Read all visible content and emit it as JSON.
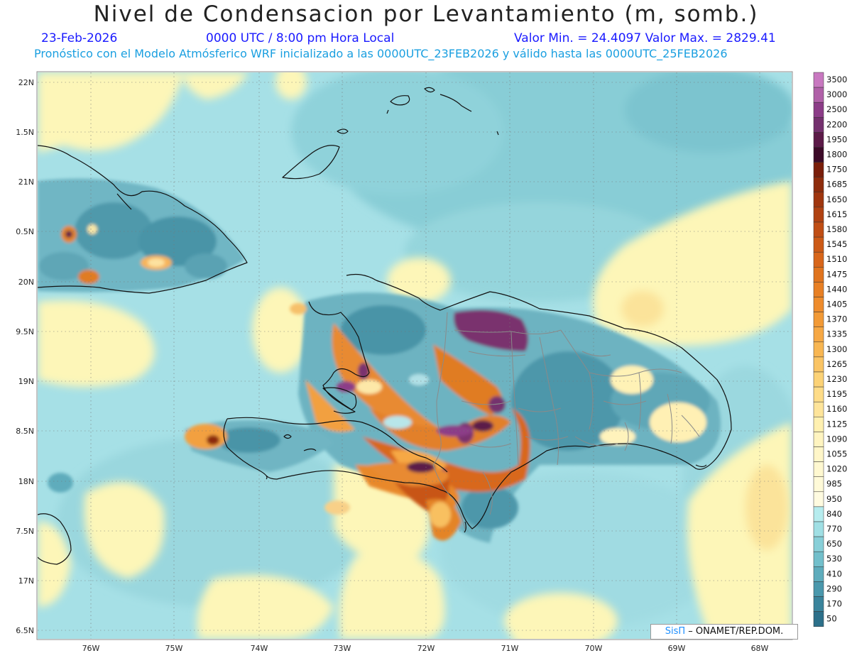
{
  "title": "Nivel de Condensacion por Levantamiento (m, somb.)",
  "header": {
    "date": "23-Feb-2026",
    "time": "0000 UTC / 8:00 pm Hora Local",
    "minmax": "Valor Min. = 24.4097   Valor Max. = 2829.41",
    "subtitle": "Pronóstico con el Modelo Atmósferico WRF inicializado a las 0000UTC_23FEB2026 y válido hasta las  0000UTC_25FEB2026"
  },
  "axes": {
    "lat_labels": [
      "22N",
      "1.5N",
      "21N",
      "0.5N",
      "20N",
      "9.5N",
      "19N",
      "8.5N",
      "18N",
      "7.5N",
      "17N",
      "6.5N"
    ],
    "lon_labels": [
      "76W",
      "75W",
      "74W",
      "73W",
      "72W",
      "71W",
      "70W",
      "69W",
      "68W"
    ]
  },
  "colorbar": {
    "levels": [
      "3500",
      "3000",
      "2500",
      "2200",
      "1950",
      "1800",
      "1750",
      "1685",
      "1650",
      "1615",
      "1580",
      "1545",
      "1510",
      "1475",
      "1440",
      "1405",
      "1370",
      "1335",
      "1300",
      "1265",
      "1230",
      "1195",
      "1160",
      "1125",
      "1090",
      "1055",
      "1020",
      "985",
      "950",
      "840",
      "770",
      "650",
      "530",
      "410",
      "290",
      "170",
      "50"
    ],
    "colors": [
      "#c878c0",
      "#b060a8",
      "#8c3c88",
      "#74306e",
      "#5c1a48",
      "#3c0a28",
      "#7a1e0a",
      "#8e2c0c",
      "#a0360e",
      "#b04212",
      "#c04e14",
      "#cc5a16",
      "#d8661a",
      "#e0741e",
      "#e88024",
      "#ee8c2c",
      "#f29a36",
      "#f6a844",
      "#f8b652",
      "#fac464",
      "#fcd276",
      "#fedc88",
      "#fee49a",
      "#fff0b0",
      "#fff4c0",
      "#fff6c8",
      "#fff8d0",
      "#fffad8",
      "#fffbe0",
      "#b6ecee",
      "#a0dfe4",
      "#88cfd8",
      "#72bfcb",
      "#5eacbc",
      "#4a98ac",
      "#3a849c",
      "#2c708a"
    ]
  },
  "credit": {
    "brand": "SisΠ",
    "text": " – ONAMET/REP.DOM."
  }
}
